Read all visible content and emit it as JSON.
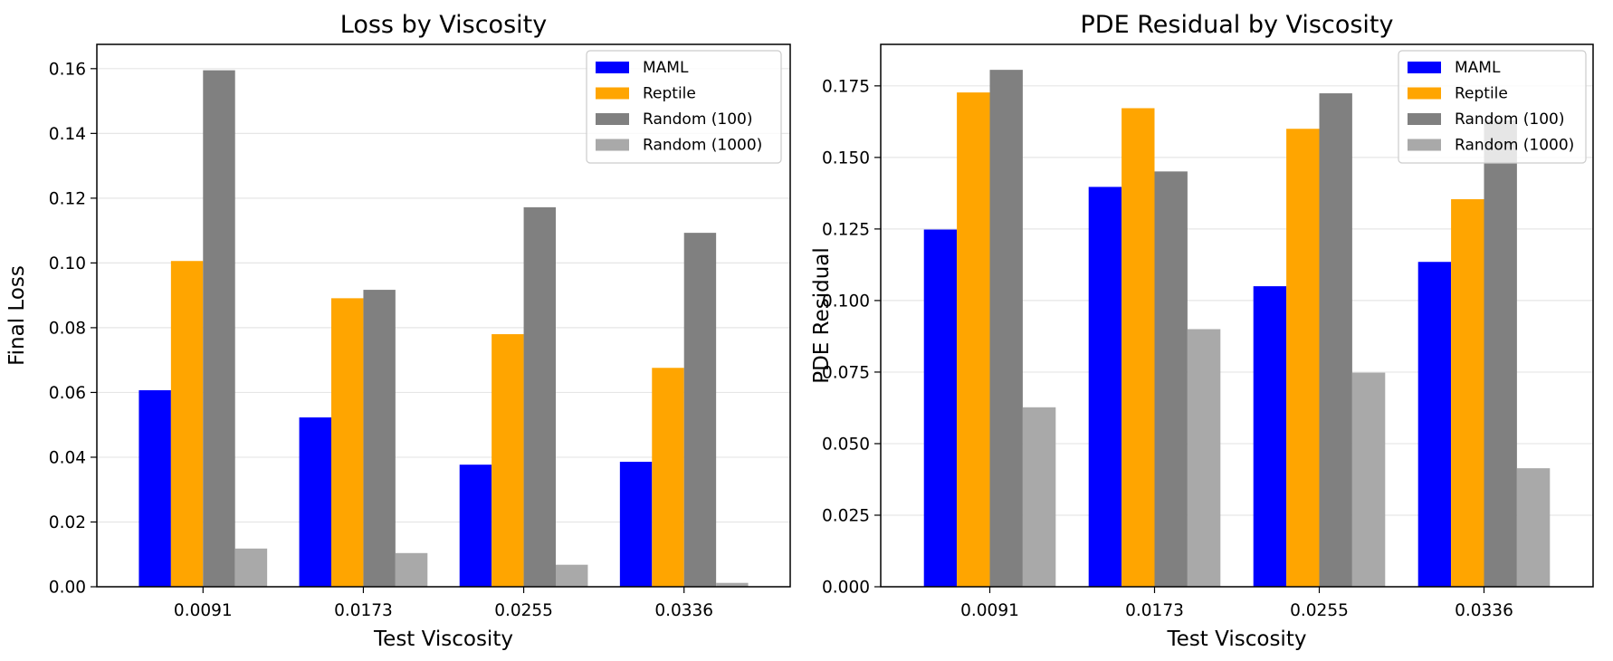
{
  "chart_data": [
    {
      "type": "bar",
      "title": "Loss by Viscosity",
      "xlabel": "Test Viscosity",
      "ylabel": "Final Loss",
      "categories": [
        "0.0091",
        "0.0173",
        "0.0255",
        "0.0336"
      ],
      "ylim": [
        0,
        0.1675
      ],
      "yticks": [
        "0.00",
        "0.02",
        "0.04",
        "0.06",
        "0.08",
        "0.10",
        "0.12",
        "0.14",
        "0.16"
      ],
      "grid": "horizontal",
      "legend_position": "top-right",
      "series": [
        {
          "name": "MAML",
          "color": "#0000ff",
          "values": [
            0.0607,
            0.0523,
            0.0377,
            0.0386
          ]
        },
        {
          "name": "Reptile",
          "color": "#ffa500",
          "values": [
            0.1006,
            0.0891,
            0.078,
            0.0676
          ]
        },
        {
          "name": "Random (100)",
          "color": "#808080",
          "values": [
            0.1595,
            0.0917,
            0.1172,
            0.1093
          ]
        },
        {
          "name": "Random (1000)",
          "color": "#a9a9a9",
          "values": [
            0.0118,
            0.0104,
            0.0068,
            0.0012
          ]
        }
      ]
    },
    {
      "type": "bar",
      "title": "PDE Residual by Viscosity",
      "xlabel": "Test Viscosity",
      "ylabel": "PDE Residual",
      "categories": [
        "0.0091",
        "0.0173",
        "0.0255",
        "0.0336"
      ],
      "ylim": [
        0,
        0.1895
      ],
      "yticks": [
        "0.000",
        "0.025",
        "0.050",
        "0.075",
        "0.100",
        "0.125",
        "0.150",
        "0.175"
      ],
      "grid": "horizontal",
      "legend_position": "top-right",
      "series": [
        {
          "name": "MAML",
          "color": "#0000ff",
          "values": [
            0.1248,
            0.1397,
            0.105,
            0.1135
          ]
        },
        {
          "name": "Reptile",
          "color": "#ffa500",
          "values": [
            0.1727,
            0.1672,
            0.16,
            0.1354
          ]
        },
        {
          "name": "Random (100)",
          "color": "#808080",
          "values": [
            0.1806,
            0.1451,
            0.1724,
            0.163
          ]
        },
        {
          "name": "Random (1000)",
          "color": "#a9a9a9",
          "values": [
            0.0627,
            0.09,
            0.0748,
            0.0414
          ]
        }
      ]
    }
  ]
}
